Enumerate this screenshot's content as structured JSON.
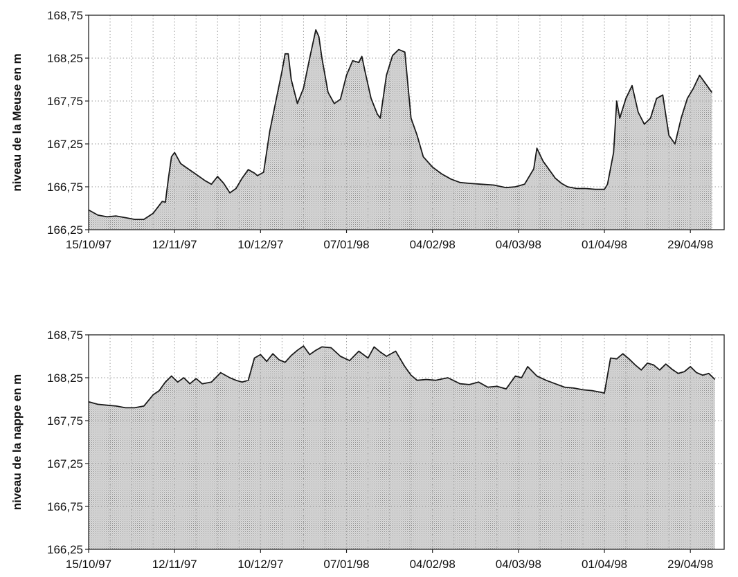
{
  "colors": {
    "fill": "#d3d3d3",
    "line": "#1a1a1a",
    "grid": "#9a9a9a",
    "frame": "#222222"
  },
  "chart_data": [
    {
      "type": "area",
      "title": "",
      "xlabel": "",
      "ylabel": "niveau de la Meuse en m",
      "xlim": [
        "1997-10-15",
        "1998-05-10"
      ],
      "ylim": [
        166.25,
        168.75
      ],
      "yticks": [
        "166,25",
        "166,75",
        "167,25",
        "167,75",
        "168,25",
        "168,75"
      ],
      "xticks": [
        "15/10/97",
        "12/11/97",
        "10/12/97",
        "07/01/98",
        "04/02/98",
        "04/03/98",
        "01/04/98",
        "29/04/98"
      ],
      "grid": true,
      "x": [
        "1997-10-15",
        "1997-10-18",
        "1997-10-21",
        "1997-10-24",
        "1997-10-27",
        "1997-10-30",
        "1997-11-02",
        "1997-11-05",
        "1997-11-08",
        "1997-11-09",
        "1997-11-10",
        "1997-11-11",
        "1997-11-12",
        "1997-11-14",
        "1997-11-16",
        "1997-11-18",
        "1997-11-20",
        "1997-11-22",
        "1997-11-24",
        "1997-11-26",
        "1997-11-28",
        "1997-11-30",
        "1997-12-02",
        "1997-12-04",
        "1997-12-06",
        "1997-12-08",
        "1997-12-09",
        "1997-12-11",
        "1997-12-13",
        "1997-12-15",
        "1997-12-17",
        "1997-12-18",
        "1997-12-19",
        "1997-12-20",
        "1997-12-22",
        "1997-12-24",
        "1997-12-26",
        "1997-12-28",
        "1997-12-29",
        "1997-12-30",
        "1998-01-01",
        "1998-01-03",
        "1998-01-05",
        "1998-01-07",
        "1998-01-09",
        "1998-01-11",
        "1998-01-12",
        "1998-01-13",
        "1998-01-15",
        "1998-01-17",
        "1998-01-18",
        "1998-01-20",
        "1998-01-22",
        "1998-01-24",
        "1998-01-26",
        "1998-01-28",
        "1998-01-30",
        "1998-02-01",
        "1998-02-04",
        "1998-02-07",
        "1998-02-10",
        "1998-02-13",
        "1998-02-16",
        "1998-02-20",
        "1998-02-24",
        "1998-02-28",
        "1998-03-03",
        "1998-03-06",
        "1998-03-09",
        "1998-03-10",
        "1998-03-12",
        "1998-03-14",
        "1998-03-16",
        "1998-03-18",
        "1998-03-20",
        "1998-03-23",
        "1998-03-26",
        "1998-03-29",
        "1998-04-01",
        "1998-04-02",
        "1998-04-04",
        "1998-04-05",
        "1998-04-06",
        "1998-04-08",
        "1998-04-10",
        "1998-04-12",
        "1998-04-14",
        "1998-04-16",
        "1998-04-18",
        "1998-04-20",
        "1998-04-22",
        "1998-04-24",
        "1998-04-26",
        "1998-04-28",
        "1998-04-30",
        "1998-05-02",
        "1998-05-04",
        "1998-05-06"
      ],
      "series": [
        {
          "values": [
            166.48,
            166.42,
            166.4,
            166.41,
            166.39,
            166.37,
            166.37,
            166.44,
            166.58,
            166.57,
            166.85,
            167.1,
            167.15,
            167.02,
            166.97,
            166.92,
            166.87,
            166.82,
            166.78,
            166.87,
            166.79,
            166.68,
            166.73,
            166.85,
            166.95,
            166.91,
            166.88,
            166.92,
            167.4,
            167.75,
            168.1,
            168.3,
            168.3,
            168.0,
            167.72,
            167.9,
            168.25,
            168.58,
            168.5,
            168.25,
            167.85,
            167.72,
            167.77,
            168.05,
            168.22,
            168.2,
            168.27,
            168.1,
            167.78,
            167.6,
            167.55,
            168.05,
            168.28,
            168.35,
            168.32,
            167.55,
            167.35,
            167.1,
            166.98,
            166.9,
            166.84,
            166.8,
            166.79,
            166.78,
            166.77,
            166.74,
            166.75,
            166.78,
            166.96,
            167.2,
            167.05,
            166.95,
            166.85,
            166.79,
            166.75,
            166.73,
            166.73,
            166.72,
            166.72,
            166.78,
            167.15,
            167.75,
            167.55,
            167.78,
            167.93,
            167.62,
            167.48,
            167.55,
            167.78,
            167.82,
            167.35,
            167.25,
            167.55,
            167.78,
            167.9,
            168.05,
            167.95,
            167.85
          ]
        }
      ]
    },
    {
      "type": "area",
      "title": "",
      "xlabel": "",
      "ylabel": "niveau de la nappe en m",
      "xlim": [
        "1997-10-15",
        "1998-05-10"
      ],
      "ylim": [
        166.25,
        168.75
      ],
      "yticks": [
        "166,25",
        "166,75",
        "167,25",
        "167,75",
        "168,25",
        "168,75"
      ],
      "xticks": [
        "15/10/97",
        "12/11/97",
        "10/12/97",
        "07/01/98",
        "04/02/98",
        "04/03/98",
        "01/04/98",
        "29/04/98"
      ],
      "grid": true,
      "x": [
        "1997-10-15",
        "1997-10-18",
        "1997-10-21",
        "1997-10-24",
        "1997-10-27",
        "1997-10-30",
        "1997-11-02",
        "1997-11-05",
        "1997-11-07",
        "1997-11-09",
        "1997-11-11",
        "1997-11-13",
        "1997-11-15",
        "1997-11-17",
        "1997-11-19",
        "1997-11-21",
        "1997-11-24",
        "1997-11-27",
        "1997-11-30",
        "1997-12-02",
        "1997-12-04",
        "1997-12-06",
        "1997-12-08",
        "1997-12-10",
        "1997-12-12",
        "1997-12-14",
        "1997-12-16",
        "1997-12-18",
        "1997-12-20",
        "1997-12-22",
        "1997-12-24",
        "1997-12-26",
        "1997-12-28",
        "1997-12-30",
        "1998-01-02",
        "1998-01-05",
        "1998-01-08",
        "1998-01-11",
        "1998-01-14",
        "1998-01-16",
        "1998-01-18",
        "1998-01-20",
        "1998-01-23",
        "1998-01-26",
        "1998-01-28",
        "1998-01-30",
        "1998-02-02",
        "1998-02-05",
        "1998-02-09",
        "1998-02-13",
        "1998-02-16",
        "1998-02-19",
        "1998-02-22",
        "1998-02-25",
        "1998-02-28",
        "1998-03-03",
        "1998-03-05",
        "1998-03-07",
        "1998-03-10",
        "1998-03-13",
        "1998-03-16",
        "1998-03-19",
        "1998-03-22",
        "1998-03-25",
        "1998-03-28",
        "1998-03-31",
        "1998-04-01",
        "1998-04-03",
        "1998-04-05",
        "1998-04-07",
        "1998-04-09",
        "1998-04-11",
        "1998-04-13",
        "1998-04-15",
        "1998-04-17",
        "1998-04-19",
        "1998-04-21",
        "1998-04-23",
        "1998-04-25",
        "1998-04-27",
        "1998-04-29",
        "1998-05-01",
        "1998-05-03",
        "1998-05-05",
        "1998-05-07"
      ],
      "series": [
        {
          "values": [
            167.97,
            167.94,
            167.93,
            167.92,
            167.9,
            167.9,
            167.92,
            168.05,
            168.1,
            168.2,
            168.27,
            168.2,
            168.25,
            168.18,
            168.24,
            168.18,
            168.2,
            168.31,
            168.25,
            168.22,
            168.2,
            168.22,
            168.48,
            168.52,
            168.44,
            168.53,
            168.46,
            168.43,
            168.51,
            168.57,
            168.62,
            168.52,
            168.57,
            168.61,
            168.6,
            168.5,
            168.45,
            168.56,
            168.48,
            168.61,
            168.55,
            168.5,
            168.56,
            168.38,
            168.28,
            168.22,
            168.23,
            168.22,
            168.25,
            168.18,
            168.17,
            168.2,
            168.14,
            168.15,
            168.12,
            168.27,
            168.25,
            168.38,
            168.27,
            168.22,
            168.18,
            168.14,
            168.13,
            168.11,
            168.1,
            168.08,
            168.07,
            168.48,
            168.47,
            168.53,
            168.47,
            168.4,
            168.34,
            168.42,
            168.4,
            168.34,
            168.41,
            168.35,
            168.3,
            168.32,
            168.38,
            168.31,
            168.28,
            168.3,
            168.23
          ]
        }
      ]
    }
  ]
}
